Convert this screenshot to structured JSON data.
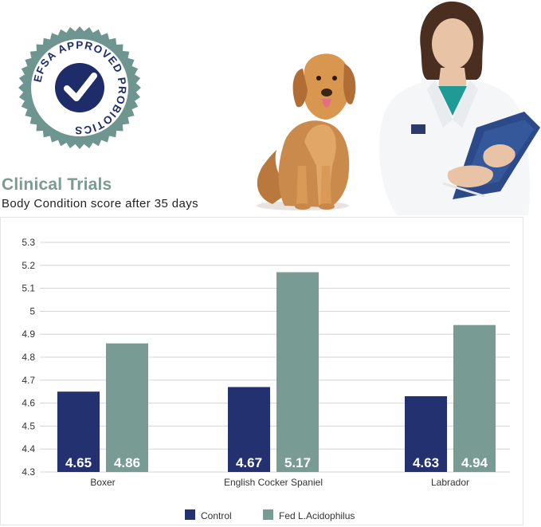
{
  "badge": {
    "text": "EFSA APPROVED PROBIOTICS",
    "color": "#6f9590",
    "inner_color": "#1e2d69",
    "icon": "checkmark-icon"
  },
  "illustration": {
    "dog": "golden-retriever",
    "person": "veterinarian-with-clipboard"
  },
  "header": {
    "title": "Clinical Trials",
    "subtitle": "Body Condition score after 35 days"
  },
  "chart_data": {
    "type": "bar",
    "categories": [
      "Boxer",
      "English Cocker Spaniel",
      "Labrador"
    ],
    "series": [
      {
        "name": "Control",
        "color": "#243170",
        "values": [
          4.65,
          4.67,
          4.63
        ],
        "labels": [
          "4.65",
          "4.67",
          "4.63"
        ]
      },
      {
        "name": "Fed L.Acidophilus",
        "color": "#789b93",
        "values": [
          4.86,
          5.17,
          4.94
        ],
        "labels": [
          "4.86",
          "5.17",
          "4.94"
        ]
      }
    ],
    "ylim": [
      4.3,
      5.3
    ],
    "yticks": [
      "4.3",
      "4.4",
      "4.5",
      "4.6",
      "4.7",
      "4.8",
      "4.9",
      "5",
      "5.1",
      "5.2",
      "5.3"
    ],
    "grid": true,
    "legend_position": "bottom"
  }
}
